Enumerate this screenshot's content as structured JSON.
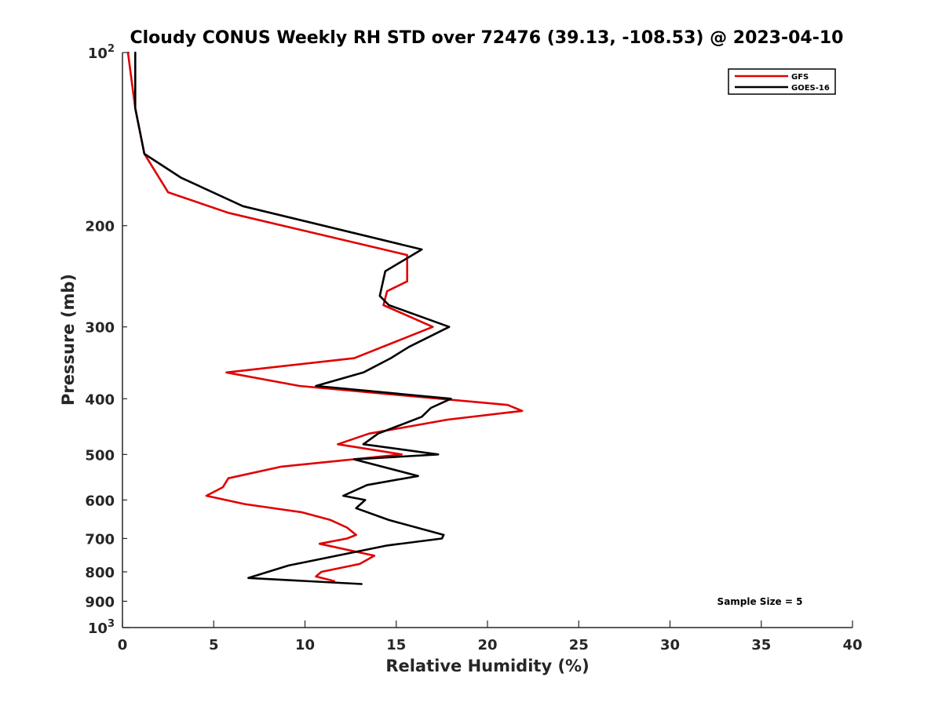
{
  "chart_data": {
    "type": "line",
    "title": "Cloudy CONUS Weekly RH STD over 72476 (39.13, -108.53) @ 2023-04-10",
    "xlabel": "Relative Humidity (%)",
    "ylabel": "Pressure (mb)",
    "xlim": [
      0,
      40
    ],
    "ylim": [
      100,
      1000
    ],
    "yscale": "log",
    "y_reversed": true,
    "grid": false,
    "legend_position": "top-right",
    "x_ticks": [
      0,
      5,
      10,
      15,
      20,
      25,
      30,
      35,
      40
    ],
    "x_tick_labels": [
      "0",
      "5",
      "10",
      "15",
      "20",
      "25",
      "30",
      "35",
      "40"
    ],
    "y_ticks_minor": [
      200,
      300,
      400,
      500,
      600,
      700,
      800,
      900
    ],
    "y_tick_labels_minor": [
      "200",
      "300",
      "400",
      "500",
      "600",
      "700",
      "800",
      "900"
    ],
    "y_tick_top": {
      "base": "10",
      "exp": "2"
    },
    "y_tick_bottom": {
      "base": "10",
      "exp": "3"
    },
    "annotation": "Sample Size = 5",
    "series": [
      {
        "name": "GFS",
        "color": "#e00000",
        "x": [
          0.3,
          0.7,
          1.2,
          2.5,
          5.8,
          15.6,
          15.6,
          14.5,
          14.3,
          17.0,
          12.7,
          5.7,
          9.7,
          21.1,
          21.9,
          17.8,
          13.5,
          11.8,
          15.3,
          8.7,
          5.8,
          5.5,
          4.6,
          6.7,
          9.8,
          11.4,
          12.3,
          12.8,
          12.3,
          10.8,
          13.8,
          13.0,
          10.9,
          10.6,
          11.6
        ],
        "y": [
          100,
          125,
          150,
          175,
          190,
          225,
          250,
          260,
          275,
          300,
          340,
          360,
          380,
          410,
          420,
          435,
          460,
          480,
          500,
          525,
          550,
          570,
          590,
          610,
          630,
          650,
          670,
          690,
          700,
          715,
          750,
          775,
          800,
          815,
          830
        ]
      },
      {
        "name": "GOES-16",
        "color": "#000000",
        "x": [
          0.7,
          0.7,
          1.2,
          3.2,
          6.6,
          16.4,
          14.4,
          14.1,
          14.6,
          17.9,
          15.7,
          14.7,
          13.2,
          10.6,
          18.0,
          16.9,
          16.4,
          14.0,
          13.2,
          17.3,
          12.7,
          16.2,
          13.4,
          12.1,
          13.3,
          12.8,
          14.6,
          17.6,
          17.5,
          14.5,
          9.1,
          6.9,
          13.1
        ],
        "y": [
          100,
          125,
          150,
          165,
          185,
          220,
          240,
          265,
          275,
          300,
          325,
          340,
          360,
          380,
          400,
          415,
          430,
          460,
          480,
          500,
          510,
          545,
          565,
          590,
          600,
          620,
          650,
          690,
          700,
          720,
          780,
          820,
          840
        ]
      }
    ]
  }
}
